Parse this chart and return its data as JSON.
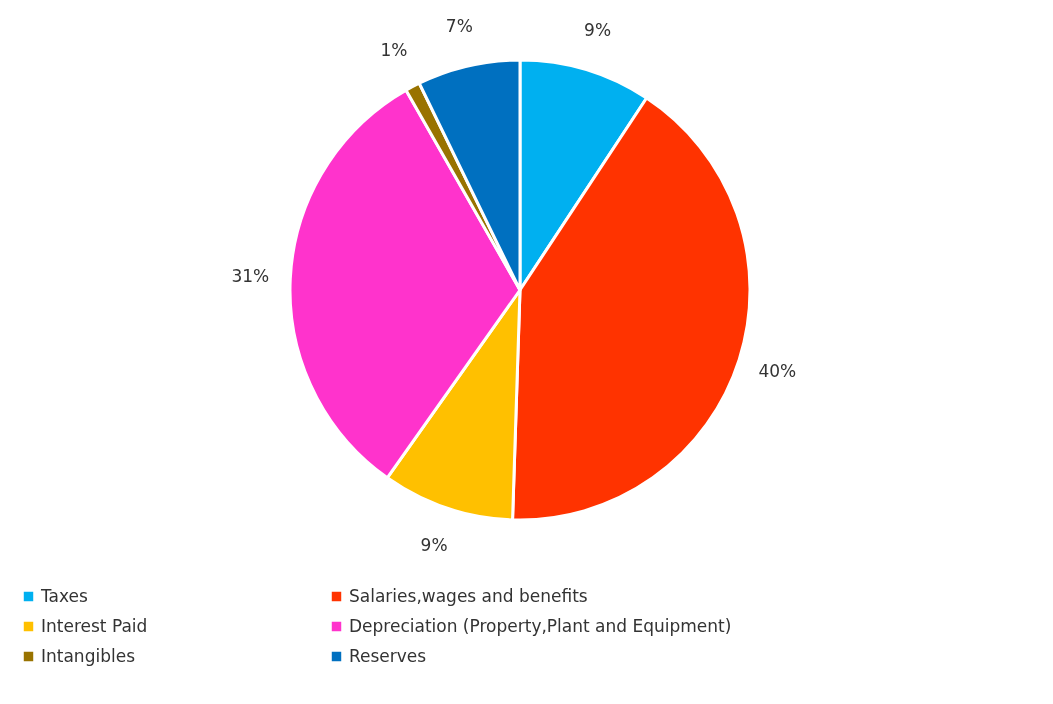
{
  "chart_data": {
    "type": "pie",
    "categories": [
      "Taxes",
      "Salaries,wages and benefits",
      "Interest Paid",
      "Depreciation (Property,Plant and Equipment)",
      "Intangibles",
      "Reserves"
    ],
    "values": [
      9,
      40,
      9,
      31,
      1,
      7
    ],
    "colors": [
      "#00b0f0",
      "#ff3300",
      "#ffc000",
      "#ff33cc",
      "#997300",
      "#0070c0"
    ],
    "value_labels": [
      "9%",
      "40%",
      "9%",
      "31%",
      "1%",
      "7%"
    ],
    "legend": "bottom"
  }
}
